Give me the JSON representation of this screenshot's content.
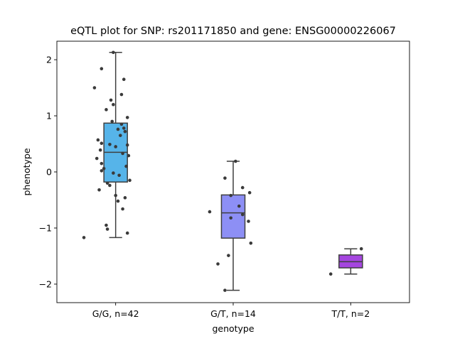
{
  "chart_data": {
    "type": "box",
    "title": "eQTL plot for SNP: rs201171850 and gene: ENSG00000226067",
    "xlabel": "genotype",
    "ylabel": "phenotype",
    "ylim": [
      -2.33,
      2.33
    ],
    "yticks": [
      -2,
      -1,
      0,
      1,
      2
    ],
    "yticklabels": [
      "−2",
      "−1",
      "0",
      "1",
      "2"
    ],
    "categories": [
      "G/G, n=42",
      "G/T, n=14",
      "T/T, n=2"
    ],
    "grid": false,
    "boxes": [
      {
        "category": "G/G, n=42",
        "color": "#56b4e9",
        "whisker_low": -1.17,
        "q1": -0.18,
        "median": 0.35,
        "q3": 0.87,
        "whisker_high": 2.13,
        "points": [
          [
            -0.02,
            2.13
          ],
          [
            -0.12,
            1.84
          ],
          [
            0.07,
            1.65
          ],
          [
            -0.18,
            1.5
          ],
          [
            0.05,
            1.38
          ],
          [
            -0.04,
            1.28
          ],
          [
            -0.02,
            1.2
          ],
          [
            -0.08,
            1.11
          ],
          [
            0.1,
            0.97
          ],
          [
            -0.03,
            0.9
          ],
          [
            0.05,
            0.85
          ],
          [
            0.07,
            0.78
          ],
          [
            0.02,
            0.76
          ],
          [
            0.08,
            0.72
          ],
          [
            0.04,
            0.65
          ],
          [
            -0.15,
            0.57
          ],
          [
            -0.12,
            0.51
          ],
          [
            -0.05,
            0.49
          ],
          [
            0.1,
            0.48
          ],
          [
            0.0,
            0.45
          ],
          [
            -0.13,
            0.39
          ],
          [
            0.06,
            0.33
          ],
          [
            0.11,
            0.29
          ],
          [
            -0.16,
            0.24
          ],
          [
            -0.12,
            0.15
          ],
          [
            0.09,
            0.1
          ],
          [
            -0.1,
            0.06
          ],
          [
            -0.12,
            0.02
          ],
          [
            -0.02,
            -0.02
          ],
          [
            0.03,
            -0.06
          ],
          [
            0.12,
            -0.15
          ],
          [
            -0.07,
            -0.2
          ],
          [
            -0.05,
            -0.24
          ],
          [
            -0.14,
            -0.32
          ],
          [
            0.0,
            -0.42
          ],
          [
            0.08,
            -0.46
          ],
          [
            0.02,
            -0.52
          ],
          [
            0.06,
            -0.66
          ],
          [
            -0.08,
            -0.95
          ],
          [
            -0.07,
            -1.02
          ],
          [
            0.1,
            -1.09
          ],
          [
            -0.27,
            -1.17
          ]
        ]
      },
      {
        "category": "G/T, n=14",
        "color": "#8d8ff5",
        "whisker_low": -2.11,
        "q1": -1.18,
        "median": -0.73,
        "q3": -0.41,
        "whisker_high": 0.19,
        "points": [
          [
            0.02,
            0.19
          ],
          [
            -0.07,
            -0.11
          ],
          [
            0.08,
            -0.28
          ],
          [
            0.14,
            -0.37
          ],
          [
            -0.02,
            -0.42
          ],
          [
            0.05,
            -0.61
          ],
          [
            -0.2,
            -0.71
          ],
          [
            0.08,
            -0.76
          ],
          [
            -0.02,
            -0.82
          ],
          [
            0.13,
            -0.88
          ],
          [
            0.15,
            -1.27
          ],
          [
            -0.04,
            -1.49
          ],
          [
            -0.13,
            -1.64
          ],
          [
            -0.07,
            -2.11
          ]
        ]
      },
      {
        "category": "T/T, n=2",
        "color": "#a546e0",
        "whisker_low": -1.82,
        "q1": -1.71,
        "median": -1.6,
        "q3": -1.48,
        "whisker_high": -1.37,
        "points": [
          [
            -0.17,
            -1.82
          ],
          [
            0.09,
            -1.37
          ]
        ]
      }
    ]
  }
}
